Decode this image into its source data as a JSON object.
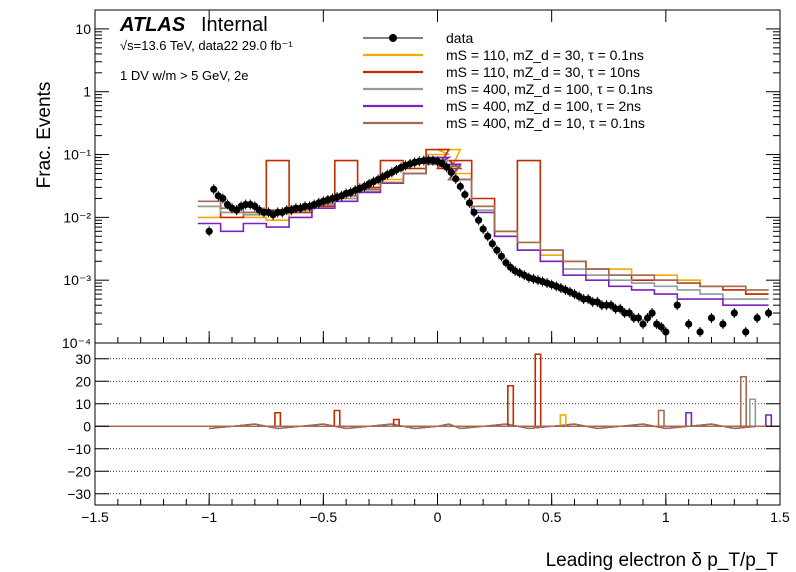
{
  "chart_data": {
    "type": "line",
    "experiment": "ATLAS",
    "status": "Internal",
    "energy_lumi": "√s=13.6 TeV, data22 29.0 fb⁻¹",
    "selection": "1 DV w/m > 5 GeV, 2e",
    "xlabel": "Leading electron δ p_T/p_T",
    "ylabel": "Frac. Events",
    "xlim": [
      -1.5,
      1.5
    ],
    "ylim_top": [
      0.0001,
      20
    ],
    "ylim_bottom": [
      -35,
      37
    ],
    "y_scale_top": "log",
    "x_ticks": [
      "−1.5",
      "−1",
      "−0.5",
      "0",
      "0.5",
      "1",
      "1.5"
    ],
    "y_ticks_top": [
      {
        "value": 10,
        "label": "10"
      },
      {
        "value": 1,
        "label": "1"
      },
      {
        "value": 0.1,
        "label": "10⁻¹"
      },
      {
        "value": 0.01,
        "label": "10⁻²"
      },
      {
        "value": 0.001,
        "label": "10⁻³"
      },
      {
        "value": 0.0001,
        "label": "10⁻⁴"
      }
    ],
    "y_ticks_bottom": [
      {
        "value": 30,
        "label": "30"
      },
      {
        "value": 20,
        "label": "20"
      },
      {
        "value": 10,
        "label": "10"
      },
      {
        "value": 0,
        "label": "0"
      },
      {
        "value": -10,
        "label": "−10"
      },
      {
        "value": -20,
        "label": "−20"
      },
      {
        "value": -30,
        "label": "−30"
      }
    ],
    "legend_position": "top-right",
    "legend": [
      {
        "label": "data",
        "color": "#000000",
        "style": "marker"
      },
      {
        "label": "mS = 110, mZ_d = 30, τ = 0.1ns",
        "color": "#f5a800",
        "style": "line"
      },
      {
        "label": "mS = 110, mZ_d = 30, τ = 10ns",
        "color": "#c42a00",
        "style": "line"
      },
      {
        "label": "mS = 400, mZ_d = 100, τ = 0.1ns",
        "color": "#8f9c9c",
        "style": "line"
      },
      {
        "label": "mS = 400, mZ_d = 100, τ = 2ns",
        "color": "#7b22bf",
        "style": "line"
      },
      {
        "label": "mS = 400, mZ_d = 10, τ = 0.1ns",
        "color": "#a36b50",
        "style": "line"
      }
    ],
    "data_points": {
      "x": [
        -1.0,
        -0.98,
        -0.96,
        -0.94,
        -0.92,
        -0.9,
        -0.88,
        -0.86,
        -0.84,
        -0.82,
        -0.8,
        -0.78,
        -0.76,
        -0.74,
        -0.72,
        -0.7,
        -0.68,
        -0.66,
        -0.64,
        -0.62,
        -0.6,
        -0.58,
        -0.56,
        -0.54,
        -0.52,
        -0.5,
        -0.48,
        -0.46,
        -0.44,
        -0.42,
        -0.4,
        -0.38,
        -0.36,
        -0.34,
        -0.32,
        -0.3,
        -0.28,
        -0.26,
        -0.24,
        -0.22,
        -0.2,
        -0.18,
        -0.16,
        -0.14,
        -0.12,
        -0.1,
        -0.08,
        -0.06,
        -0.04,
        -0.02,
        0.0,
        0.02,
        0.04,
        0.06,
        0.08,
        0.1,
        0.12,
        0.14,
        0.16,
        0.18,
        0.2,
        0.22,
        0.24,
        0.26,
        0.28,
        0.3,
        0.32,
        0.34,
        0.36,
        0.38,
        0.4,
        0.42,
        0.44,
        0.46,
        0.48,
        0.5,
        0.52,
        0.54,
        0.56,
        0.58,
        0.6,
        0.62,
        0.64,
        0.66,
        0.68,
        0.7,
        0.72,
        0.74,
        0.76,
        0.78,
        0.8,
        0.82,
        0.84,
        0.86,
        0.88,
        0.9,
        0.92,
        0.94,
        0.96,
        0.98,
        1.0,
        1.05,
        1.1,
        1.15,
        1.2,
        1.25,
        1.3,
        1.35,
        1.4,
        1.45
      ],
      "y": [
        0.006,
        0.028,
        0.022,
        0.02,
        0.016,
        0.014,
        0.013,
        0.015,
        0.016,
        0.016,
        0.015,
        0.013,
        0.012,
        0.012,
        0.011,
        0.012,
        0.012,
        0.013,
        0.013,
        0.014,
        0.014,
        0.015,
        0.015,
        0.016,
        0.017,
        0.018,
        0.019,
        0.02,
        0.021,
        0.022,
        0.024,
        0.025,
        0.027,
        0.029,
        0.031,
        0.034,
        0.037,
        0.04,
        0.044,
        0.048,
        0.052,
        0.057,
        0.062,
        0.067,
        0.071,
        0.075,
        0.078,
        0.08,
        0.081,
        0.08,
        0.078,
        0.072,
        0.063,
        0.052,
        0.041,
        0.031,
        0.023,
        0.017,
        0.012,
        0.009,
        0.0065,
        0.005,
        0.0038,
        0.003,
        0.0024,
        0.0019,
        0.0016,
        0.0014,
        0.0013,
        0.0012,
        0.0011,
        0.00105,
        0.001,
        0.00095,
        0.0009,
        0.00085,
        0.0008,
        0.00075,
        0.0007,
        0.00065,
        0.0006,
        0.00055,
        0.0005,
        0.0005,
        0.00045,
        0.00045,
        0.0004,
        0.0004,
        0.0004,
        0.00035,
        0.00035,
        0.0003,
        0.0003,
        0.00025,
        0.00025,
        0.0002,
        0.00025,
        0.0003,
        0.0002,
        0.00018,
        0.00015,
        0.0004,
        0.0002,
        0.00015,
        0.00025,
        0.0002,
        0.0003,
        0.00015,
        0.00025,
        0.0003
      ]
    },
    "series": [
      {
        "name": "mS = 110, mZ_d = 30, τ = 0.1ns",
        "color": "#f5a800",
        "x": [
          -1.0,
          -0.9,
          -0.8,
          -0.7,
          -0.6,
          -0.5,
          -0.4,
          -0.3,
          -0.2,
          -0.1,
          0.0,
          0.05,
          0.1,
          0.2,
          0.3,
          0.4,
          0.5,
          0.6,
          0.7,
          0.8,
          0.9,
          1.0,
          1.1,
          1.2,
          1.3,
          1.4
        ],
        "y": [
          0.01,
          0.012,
          0.01,
          0.009,
          0.012,
          0.016,
          0.02,
          0.028,
          0.04,
          0.06,
          0.1,
          0.12,
          0.05,
          0.015,
          0.006,
          0.003,
          0.0025,
          0.002,
          0.0012,
          0.0015,
          0.0012,
          0.0012,
          0.001,
          0.0008,
          0.0008,
          0.0006
        ]
      },
      {
        "name": "mS = 110, mZ_d = 30, τ = 10ns",
        "color": "#c42a00",
        "x": [
          -1.0,
          -0.9,
          -0.8,
          -0.7,
          -0.6,
          -0.5,
          -0.4,
          -0.3,
          -0.2,
          -0.1,
          0.0,
          0.05,
          0.1,
          0.2,
          0.3,
          0.4,
          0.5,
          0.6,
          0.7,
          0.8,
          0.9,
          1.0,
          1.1,
          1.2,
          1.3,
          1.4
        ],
        "y": [
          0.015,
          0.01,
          0.012,
          0.08,
          0.012,
          0.015,
          0.08,
          0.03,
          0.08,
          0.06,
          0.12,
          0.06,
          0.08,
          0.02,
          0.006,
          0.08,
          0.003,
          0.002,
          0.0015,
          0.0012,
          0.001,
          0.001,
          0.0009,
          0.0008,
          0.0007,
          0.0006
        ]
      },
      {
        "name": "mS = 400, mZ_d = 100, τ = 0.1ns",
        "color": "#8f9c9c",
        "x": [
          -1.0,
          -0.9,
          -0.8,
          -0.7,
          -0.6,
          -0.5,
          -0.4,
          -0.3,
          -0.2,
          -0.1,
          0.0,
          0.05,
          0.1,
          0.2,
          0.3,
          0.4,
          0.5,
          0.6,
          0.7,
          0.8,
          0.9,
          1.0,
          1.1,
          1.2,
          1.3,
          1.4
        ],
        "y": [
          0.015,
          0.012,
          0.011,
          0.012,
          0.013,
          0.016,
          0.02,
          0.026,
          0.035,
          0.05,
          0.08,
          0.07,
          0.04,
          0.013,
          0.005,
          0.003,
          0.002,
          0.0015,
          0.0012,
          0.001,
          0.0009,
          0.0008,
          0.0007,
          0.0006,
          0.0005,
          0.0005
        ]
      },
      {
        "name": "mS = 400, mZ_d = 100, τ = 2ns",
        "color": "#7b22bf",
        "x": [
          -1.0,
          -0.9,
          -0.8,
          -0.7,
          -0.6,
          -0.5,
          -0.4,
          -0.3,
          -0.2,
          -0.1,
          0.0,
          0.05,
          0.1,
          0.2,
          0.3,
          0.4,
          0.5,
          0.6,
          0.7,
          0.8,
          0.9,
          1.0,
          1.1,
          1.2,
          1.3,
          1.4
        ],
        "y": [
          0.008,
          0.006,
          0.008,
          0.007,
          0.01,
          0.014,
          0.018,
          0.025,
          0.035,
          0.05,
          0.09,
          0.07,
          0.04,
          0.012,
          0.005,
          0.003,
          0.002,
          0.0012,
          0.001,
          0.0008,
          0.0007,
          0.0006,
          0.0005,
          0.0005,
          0.0004,
          0.0004
        ]
      },
      {
        "name": "mS = 400, mZ_d = 10, τ = 0.1ns",
        "color": "#a36b50",
        "x": [
          -1.0,
          -0.9,
          -0.8,
          -0.7,
          -0.6,
          -0.5,
          -0.4,
          -0.3,
          -0.2,
          -0.1,
          0.0,
          0.05,
          0.1,
          0.2,
          0.3,
          0.4,
          0.5,
          0.6,
          0.7,
          0.8,
          0.9,
          1.0,
          1.1,
          1.2,
          1.3,
          1.4
        ],
        "y": [
          0.018,
          0.014,
          0.012,
          0.013,
          0.015,
          0.017,
          0.022,
          0.028,
          0.036,
          0.05,
          0.07,
          0.065,
          0.04,
          0.015,
          0.006,
          0.004,
          0.003,
          0.002,
          0.0015,
          0.0012,
          0.0012,
          0.001,
          0.0009,
          0.0008,
          0.0008,
          0.0007
        ]
      }
    ],
    "ratio_spikes": [
      {
        "x": -0.7,
        "y": 6,
        "color": "#c42a00"
      },
      {
        "x": -0.44,
        "y": 7,
        "color": "#c42a00"
      },
      {
        "x": -0.18,
        "y": 3,
        "color": "#c42a00"
      },
      {
        "x": 0.32,
        "y": 18,
        "color": "#c42a00"
      },
      {
        "x": 0.44,
        "y": 32,
        "color": "#c42a00"
      },
      {
        "x": 0.55,
        "y": 5,
        "color": "#f5a800"
      },
      {
        "x": 0.98,
        "y": 7,
        "color": "#a36b50"
      },
      {
        "x": 1.1,
        "y": 6,
        "color": "#7b22bf"
      },
      {
        "x": 1.34,
        "y": 22,
        "color": "#a36b50"
      },
      {
        "x": 1.38,
        "y": 12,
        "color": "#8f9c9c"
      },
      {
        "x": 1.45,
        "y": 5,
        "color": "#7b22bf"
      }
    ]
  }
}
